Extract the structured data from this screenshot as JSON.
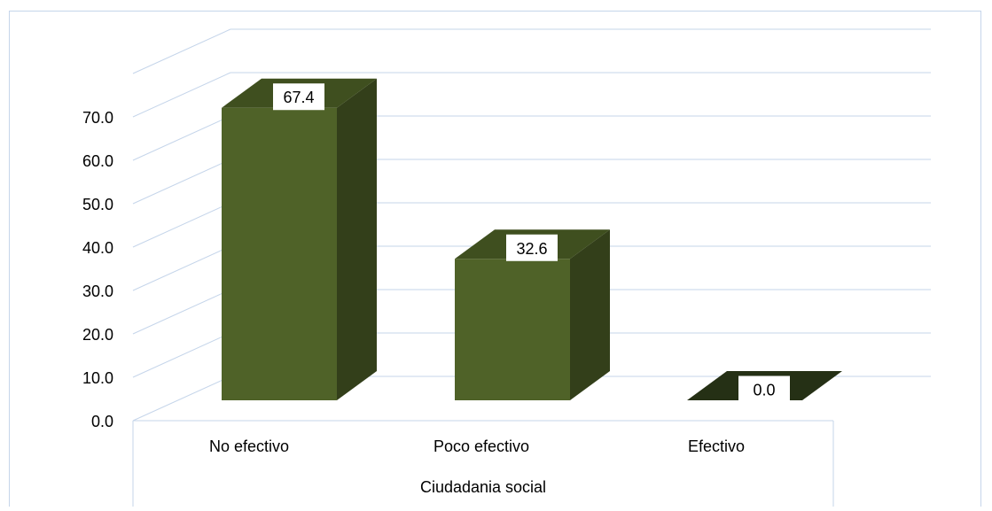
{
  "chart_data": {
    "type": "bar",
    "style": "3d-column",
    "categories": [
      "No efectivo",
      "Poco efectivo",
      "Efectivo"
    ],
    "values": [
      67.4,
      32.6,
      0.0
    ],
    "data_labels": [
      "67.4",
      "32.6",
      "0.0"
    ],
    "title": "",
    "xlabel": "Ciudadania social",
    "ylabel": "",
    "ylim": [
      0,
      70
    ],
    "yticks": [
      "0.0",
      "10.0",
      "20.0",
      "30.0",
      "40.0",
      "50.0",
      "60.0",
      "70.0"
    ],
    "grid": true,
    "legend": "none",
    "colors": {
      "bar_front": "#4f6228",
      "bar_side": "#333f1a",
      "bar_top": "#3f4f1f",
      "bar_floor": "#253015",
      "grid": "#c5d5ea",
      "frame": "#c5d5ea",
      "text": "#000000"
    }
  }
}
